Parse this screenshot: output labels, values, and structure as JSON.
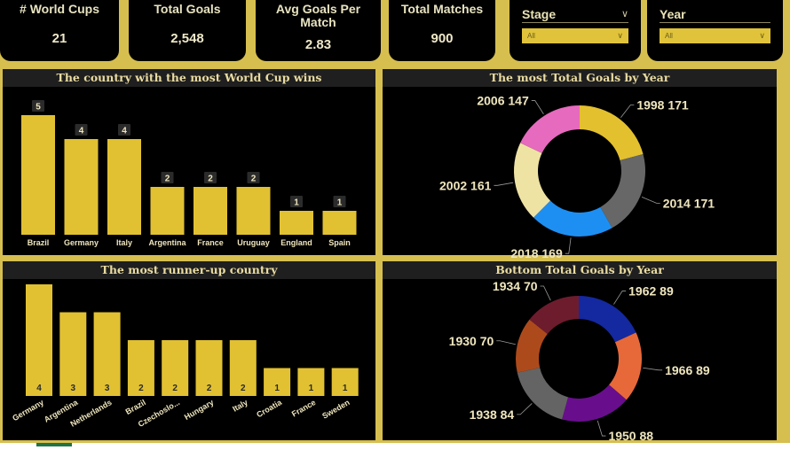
{
  "kpis": [
    {
      "label": "# World Cups",
      "value": "21"
    },
    {
      "label": "Total Goals",
      "value": "2,548"
    },
    {
      "label": "Avg Goals Per Match",
      "value": "2.83"
    },
    {
      "label": "Total Matches",
      "value": "900"
    }
  ],
  "slicers": [
    {
      "title": "Stage",
      "selected": "All"
    },
    {
      "title": "Year",
      "selected": "All"
    }
  ],
  "colors": {
    "bar": "#e1c132",
    "background": "#d6bf4f",
    "panel": "#000000"
  },
  "chart_data": [
    {
      "type": "bar",
      "title": "The country with the most World Cup wins",
      "categories": [
        "Brazil",
        "Germany",
        "Italy",
        "Argentina",
        "France",
        "Uruguay",
        "England",
        "Spain"
      ],
      "values": [
        5,
        4,
        4,
        2,
        2,
        2,
        1,
        1
      ],
      "ylim": [
        0,
        5
      ]
    },
    {
      "type": "pie",
      "title": "The most Total Goals by Year",
      "labels": [
        "1998",
        "2014",
        "2018",
        "2002",
        "2006"
      ],
      "values": [
        171,
        171,
        169,
        161,
        147
      ],
      "colors": [
        "#e3c02e",
        "#676767",
        "#1e8ff2",
        "#efe3a4",
        "#e66abd"
      ]
    },
    {
      "type": "bar",
      "title": "The most runner-up country",
      "categories": [
        "Germany",
        "Argentina",
        "Netherlands",
        "Brazil",
        "Czechoslo...",
        "Hungary",
        "Italy",
        "Croatia",
        "France",
        "Sweden"
      ],
      "values": [
        4,
        3,
        3,
        2,
        2,
        2,
        2,
        1,
        1,
        1
      ],
      "ylim": [
        0,
        4
      ]
    },
    {
      "type": "pie",
      "title": "Bottom Total Goals by Year",
      "labels": [
        "1962",
        "1966",
        "1950",
        "1938",
        "1930",
        "1934"
      ],
      "values": [
        89,
        89,
        88,
        84,
        70,
        70
      ],
      "colors": [
        "#1428a0",
        "#e7693a",
        "#680e8c",
        "#646464",
        "#ad4a1c",
        "#6d1c2d"
      ]
    }
  ]
}
